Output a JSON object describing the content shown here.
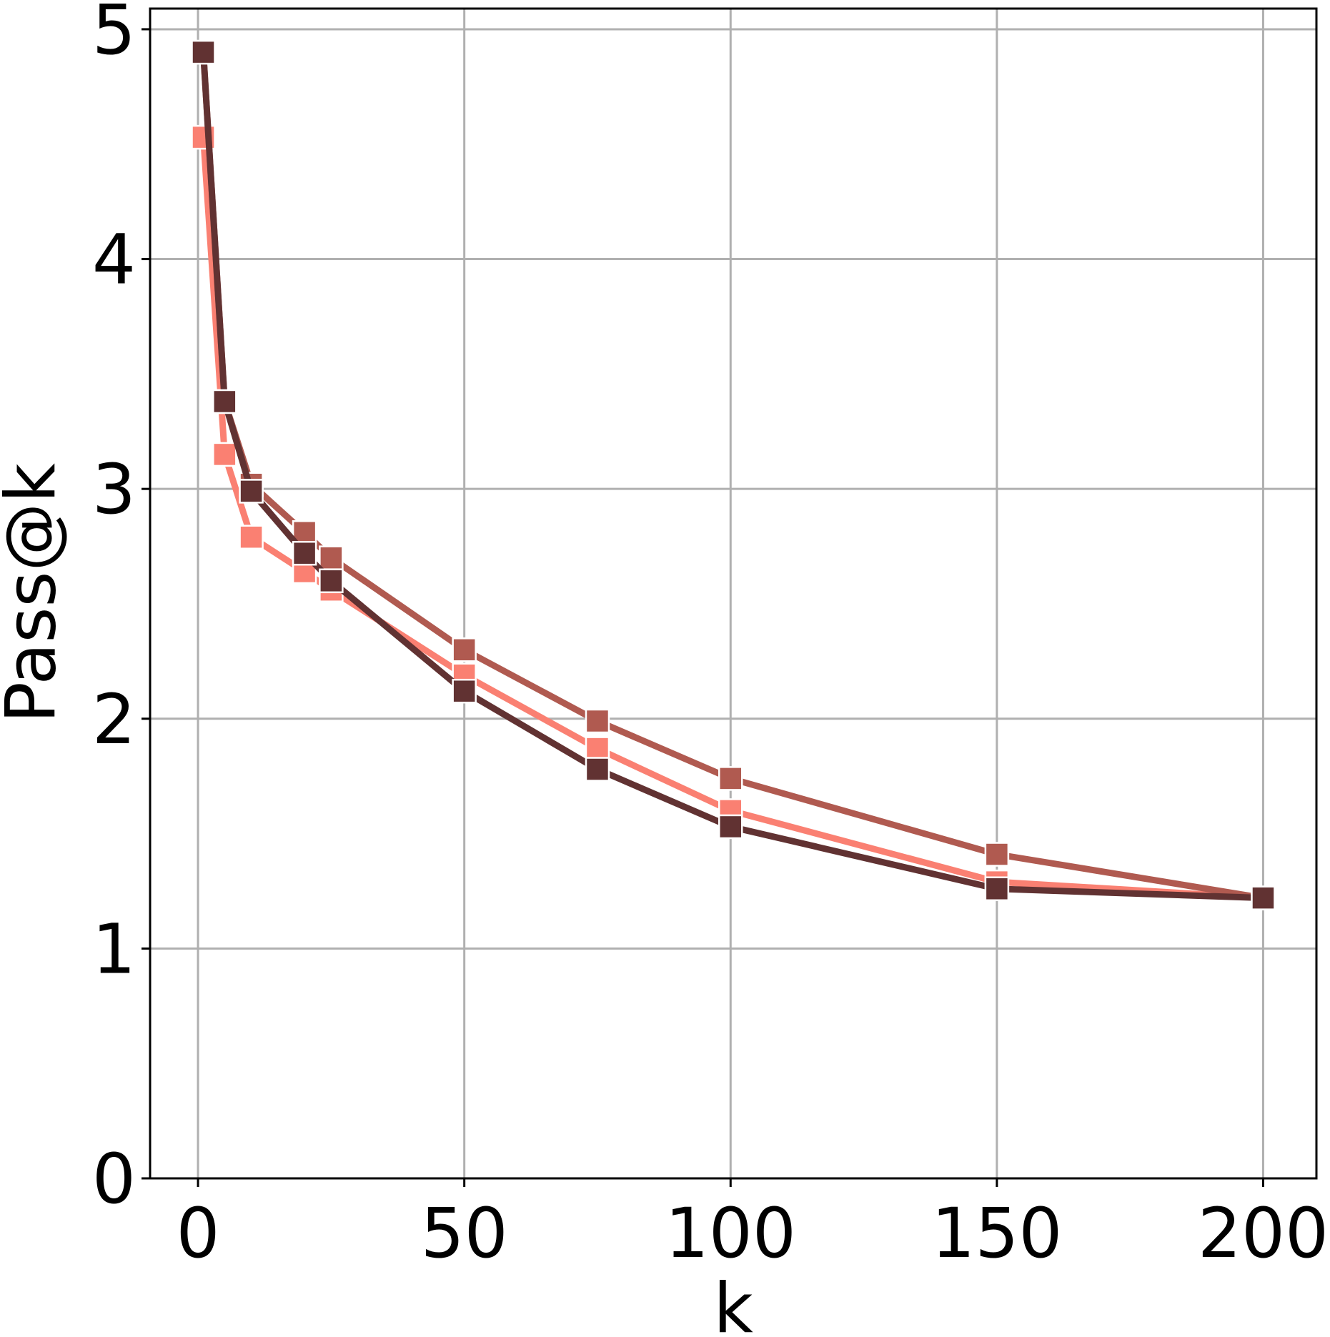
{
  "chart_data": {
    "type": "line",
    "xlabel": "k",
    "ylabel": "Pass@k",
    "x": [
      1,
      5,
      10,
      20,
      25,
      50,
      75,
      100,
      150,
      200
    ],
    "series": [
      {
        "color": "#fa8072",
        "values": [
          4.53,
          3.15,
          2.79,
          2.64,
          2.56,
          2.19,
          1.87,
          1.6,
          1.29,
          1.22
        ]
      },
      {
        "color": "#b05a50",
        "values": [
          4.9,
          3.38,
          3.02,
          2.81,
          2.7,
          2.3,
          1.99,
          1.74,
          1.41,
          1.22
        ]
      },
      {
        "color": "#613232",
        "values": [
          4.9,
          3.38,
          2.99,
          2.72,
          2.6,
          2.12,
          1.78,
          1.53,
          1.26,
          1.22
        ]
      }
    ],
    "xlim": [
      -9,
      210
    ],
    "ylim": [
      0,
      5.09
    ],
    "xticks": [
      0,
      50,
      100,
      150,
      200
    ],
    "yticks": [
      0,
      1,
      2,
      3,
      4,
      5
    ],
    "grid": true,
    "marker": "square"
  }
}
